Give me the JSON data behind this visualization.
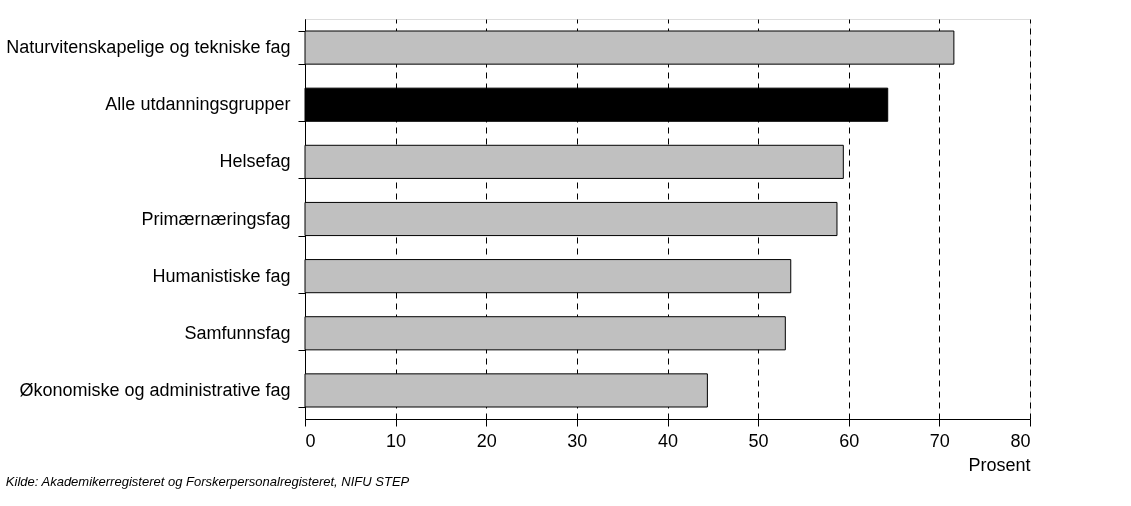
{
  "chart_data": {
    "type": "bar",
    "orientation": "horizontal",
    "categories": [
      "Naturvitenskapelige og tekniske fag",
      "Alle utdanningsgrupper",
      "Helsefag",
      "Primærnæringsfag",
      "Humanistiske fag",
      "Samfunnsfag",
      "Økonomiske og administrative fag"
    ],
    "values": [
      71.6,
      64.3,
      59.4,
      58.7,
      53.6,
      53.0,
      44.4
    ],
    "colors": [
      "#c0c0c0",
      "#000000",
      "#c0c0c0",
      "#c0c0c0",
      "#c0c0c0",
      "#c0c0c0",
      "#c0c0c0"
    ],
    "xlim": [
      0,
      80
    ],
    "xticks": [
      0,
      10,
      20,
      30,
      40,
      50,
      60,
      70,
      80
    ],
    "xlabel": "Prosent",
    "grid": "x",
    "legend": false,
    "annotations": [
      "Kilde: Akademikerregisteret og Forskerpersonalregisteret, NIFU STEP"
    ]
  }
}
